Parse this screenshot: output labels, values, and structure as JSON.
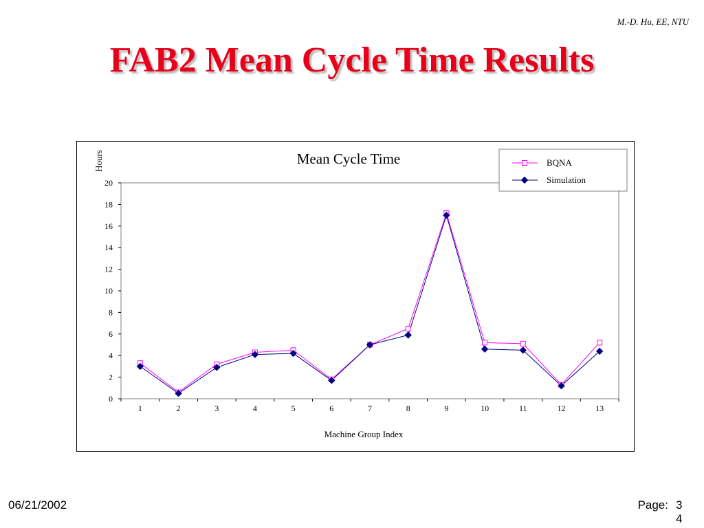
{
  "header": {
    "author": "M.-D. Hu, EE, NTU",
    "title": "FAB2 Mean Cycle Time Results"
  },
  "footer": {
    "date": "06/21/2002",
    "page_label": "Page:",
    "page_number": "34"
  },
  "colors": {
    "title": "#e8001a",
    "bqna": "#ff00ff",
    "simulation": "#000080"
  },
  "chart_data": {
    "type": "line",
    "title": "Mean Cycle Time",
    "xlabel": "Machine Group Index",
    "ylabel": "Hours",
    "x": [
      1,
      2,
      3,
      4,
      5,
      6,
      7,
      8,
      9,
      10,
      11,
      12,
      13
    ],
    "ylim": [
      0,
      20
    ],
    "yticks": [
      0,
      2,
      4,
      6,
      8,
      10,
      12,
      14,
      16,
      18,
      20
    ],
    "grid": false,
    "legend_position": "top-right",
    "series": [
      {
        "name": "BQNA",
        "marker": "open-square",
        "values": [
          3.3,
          0.6,
          3.2,
          4.3,
          4.5,
          1.8,
          5.0,
          6.5,
          17.2,
          5.2,
          5.1,
          1.3,
          5.2
        ]
      },
      {
        "name": "Simulation",
        "marker": "filled-diamond",
        "values": [
          3.0,
          0.5,
          2.9,
          4.1,
          4.2,
          1.7,
          5.0,
          5.9,
          17.0,
          4.6,
          4.5,
          1.2,
          4.4
        ]
      }
    ]
  }
}
